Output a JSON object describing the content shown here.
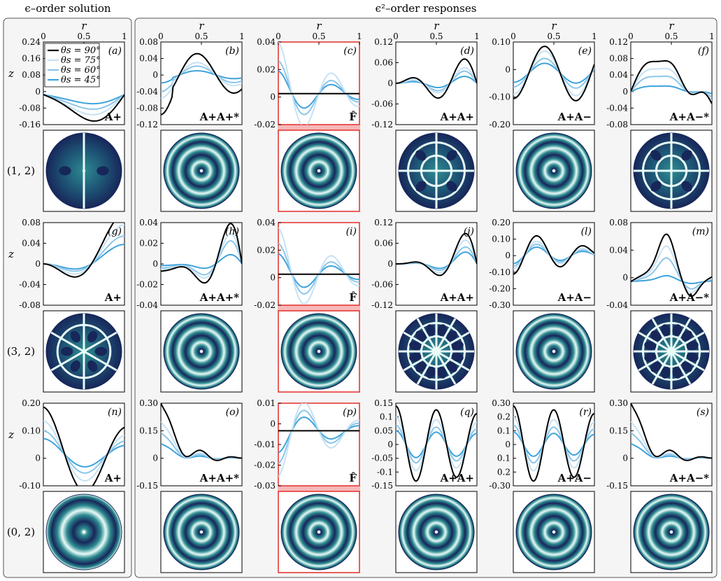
{
  "figure": {
    "left_header": "ϵ–order solution",
    "right_header": "ϵ²–order responses",
    "r_label": "r",
    "z_label": "z",
    "r_ticks": [
      "0",
      "0.5",
      "1"
    ],
    "mode_labels": [
      "(1, 2)",
      "(3, 2)",
      "(0, 2)"
    ]
  },
  "colors": {
    "series": [
      "#000000",
      "#c6e2f4",
      "#8cc6ea",
      "#3fa3db"
    ],
    "highlight": "#e53935",
    "highlight_band": "#f6b8b8",
    "panel_bg": "#f5f5f5",
    "disk_dark": "#17275a",
    "disk_mid": "#2d8a90",
    "disk_light": "#e8fbf8"
  },
  "legend": {
    "placement": "top-left of panel (a)",
    "entries": [
      "θs = 90°",
      "θs = 75°",
      "θs = 60°",
      "θs = 45°"
    ]
  },
  "chart_data": [
    {
      "type": "line",
      "panel": "(a)",
      "operator": "A+",
      "yticks": [
        "0.24",
        "0.16",
        "0.08",
        "0",
        "-0.08",
        "-0.16"
      ],
      "ylim": [
        -0.16,
        0.28
      ],
      "mode": "a",
      "amp": [
        0.14,
        0.11,
        0.08,
        0.05
      ]
    },
    {
      "type": "line",
      "panel": "(b)",
      "operator": "A+A+*",
      "yticks": [
        "0.08",
        "0.04",
        "0",
        "-0.04",
        "-0.08",
        "-0.12"
      ],
      "ylim": [
        -0.12,
        0.08
      ],
      "mode": "b",
      "amp": [
        0.06,
        0.035,
        0.025,
        0.012
      ]
    },
    {
      "type": "line",
      "panel": "(c)",
      "operator": "F̂",
      "yticks": [
        "0.04",
        "0.02",
        "0",
        "-0.02"
      ],
      "ylim": [
        -0.03,
        0.05
      ],
      "mode": "c",
      "amp": [
        0,
        0.05,
        0.032,
        0.022
      ],
      "highlight": true
    },
    {
      "type": "line",
      "panel": "(d)",
      "operator": "A+A+",
      "yticks": [
        "0.12",
        "0.06",
        "0",
        "-0.06",
        "-0.12"
      ],
      "ylim": [
        -0.12,
        0.12
      ],
      "mode": "d",
      "amp": [
        0.07,
        0.045,
        0.035,
        0.02
      ]
    },
    {
      "type": "line",
      "panel": "(e)",
      "operator": "A+A−",
      "yticks": [
        "0.10",
        "0",
        "-0.10",
        "-0.20"
      ],
      "ylim": [
        -0.2,
        0.12
      ],
      "mode": "e",
      "amp": [
        0.11,
        0.09,
        0.06,
        0.04
      ]
    },
    {
      "type": "line",
      "panel": "(f)",
      "operator": "A+A−*",
      "yticks": [
        "0.12",
        "0.08",
        "0.04",
        "0",
        "-0.04",
        "-0.08"
      ],
      "ylim": [
        -0.08,
        0.12
      ],
      "mode": "f",
      "amp": [
        0.1,
        0.075,
        0.05,
        0.018
      ]
    },
    {
      "type": "line",
      "panel": "(g)",
      "operator": "A+",
      "yticks": [
        "0.08",
        "0.04",
        "0",
        "-0.04",
        "-0.08"
      ],
      "ylim": [
        -0.1,
        0.1
      ],
      "mode": "g",
      "amp": [
        0.09,
        0.07,
        0.05,
        0.035
      ]
    },
    {
      "type": "line",
      "panel": "(h)",
      "operator": "A+A+*",
      "yticks": [
        "0.04",
        "0.02",
        "0",
        "-0.02",
        "-0.04"
      ],
      "ylim": [
        -0.04,
        0.04
      ],
      "mode": "h",
      "amp": [
        0.035,
        0.026,
        0.02,
        0.008
      ]
    },
    {
      "type": "line",
      "panel": "(i)",
      "operator": "F̂",
      "yticks": [
        "0.04",
        "0.02",
        "0",
        "-0.02"
      ],
      "ylim": [
        -0.03,
        0.05
      ],
      "mode": "c",
      "amp": [
        0,
        0.045,
        0.03,
        0.02
      ],
      "highlight": true
    },
    {
      "type": "line",
      "panel": "(j)",
      "operator": "A+A+",
      "yticks": [
        "0.12",
        "0.06",
        "0",
        "-0.06",
        "-0.12"
      ],
      "ylim": [
        -0.14,
        0.14
      ],
      "mode": "j",
      "amp": [
        0.09,
        0.07,
        0.05,
        0.035
      ]
    },
    {
      "type": "line",
      "panel": "(l)",
      "operator": "A+A−",
      "yticks": [
        "0.20",
        "0.10",
        "0",
        "-0.10",
        "-0.20",
        "-0.30"
      ],
      "ylim": [
        -0.3,
        0.2
      ],
      "mode": "l",
      "amp": [
        0.14,
        0.1,
        0.08,
        0.06
      ]
    },
    {
      "type": "line",
      "panel": "(m)",
      "operator": "A+A−*",
      "yticks": [
        "0.08",
        "0.04",
        "0",
        "-0.04"
      ],
      "ylim": [
        -0.04,
        0.1
      ],
      "mode": "m",
      "amp": [
        0.08,
        0.06,
        0.04,
        0.01
      ]
    },
    {
      "type": "line",
      "panel": "(n)",
      "operator": "A+",
      "yticks": [
        "0.20",
        "0.10",
        "0",
        "-0.10"
      ],
      "ylim": [
        -0.16,
        0.26
      ],
      "mode": "n",
      "amp": [
        0.24,
        0.17,
        0.12,
        0.08
      ]
    },
    {
      "type": "line",
      "panel": "(o)",
      "operator": "A+A+*",
      "yticks": [
        "0.30",
        "0.15",
        "0",
        "-0.15"
      ],
      "ylim": [
        -0.15,
        0.3
      ],
      "mode": "o",
      "amp": [
        0.3,
        0.2,
        0.14,
        0.08
      ]
    },
    {
      "type": "line",
      "panel": "(p)",
      "operator": "F̂",
      "yticks": [
        "0.01",
        "0",
        "-0.01",
        "-0.02",
        "-0.03"
      ],
      "ylim": [
        -0.03,
        0.015
      ],
      "mode": "p",
      "amp": [
        0,
        0.025,
        0.018,
        0.012
      ],
      "highlight": true
    },
    {
      "type": "line",
      "panel": "(q)",
      "operator": "A+A+",
      "yticks": [
        "0.15",
        "0.1",
        "0.05",
        "0",
        "-0.05",
        "-0.1",
        "-0.15"
      ],
      "ylim": [
        -0.15,
        0.15
      ],
      "mode": "q",
      "amp": [
        0.14,
        0.1,
        0.07,
        0.05
      ]
    },
    {
      "type": "line",
      "panel": "(r)",
      "operator": "A+A−",
      "yticks": [
        "0.30",
        "0.2",
        "0.1",
        "0",
        "0.1",
        "0.2",
        "-0.30"
      ],
      "ylim": [
        -0.3,
        0.3
      ],
      "mode": "q",
      "amp": [
        0.28,
        0.2,
        0.14,
        0.09
      ]
    },
    {
      "type": "line",
      "panel": "(s)",
      "operator": "A+A−*",
      "yticks": [
        "0.30",
        "0.15",
        "0",
        "-0.15"
      ],
      "ylim": [
        -0.15,
        0.3
      ],
      "mode": "o",
      "amp": [
        0.3,
        0.2,
        0.14,
        0.08
      ]
    }
  ],
  "disks": [
    {
      "panel": "(a)",
      "pattern": "m1"
    },
    {
      "panel": "(b)",
      "pattern": "rings"
    },
    {
      "panel": "(c)",
      "pattern": "rings",
      "highlight": true
    },
    {
      "panel": "(d)",
      "pattern": "m2"
    },
    {
      "panel": "(e)",
      "pattern": "rings"
    },
    {
      "panel": "(f)",
      "pattern": "m2"
    },
    {
      "panel": "(g)",
      "pattern": "m3"
    },
    {
      "panel": "(h)",
      "pattern": "rings"
    },
    {
      "panel": "(i)",
      "pattern": "rings",
      "highlight": true
    },
    {
      "panel": "(j)",
      "pattern": "m6"
    },
    {
      "panel": "(l)",
      "pattern": "rings"
    },
    {
      "panel": "(m)",
      "pattern": "m6"
    },
    {
      "panel": "(n)",
      "pattern": "rings0"
    },
    {
      "panel": "(o)",
      "pattern": "rings"
    },
    {
      "panel": "(p)",
      "pattern": "rings",
      "highlight": true
    },
    {
      "panel": "(q)",
      "pattern": "rings"
    },
    {
      "panel": "(r)",
      "pattern": "rings"
    },
    {
      "panel": "(s)",
      "pattern": "rings"
    }
  ]
}
